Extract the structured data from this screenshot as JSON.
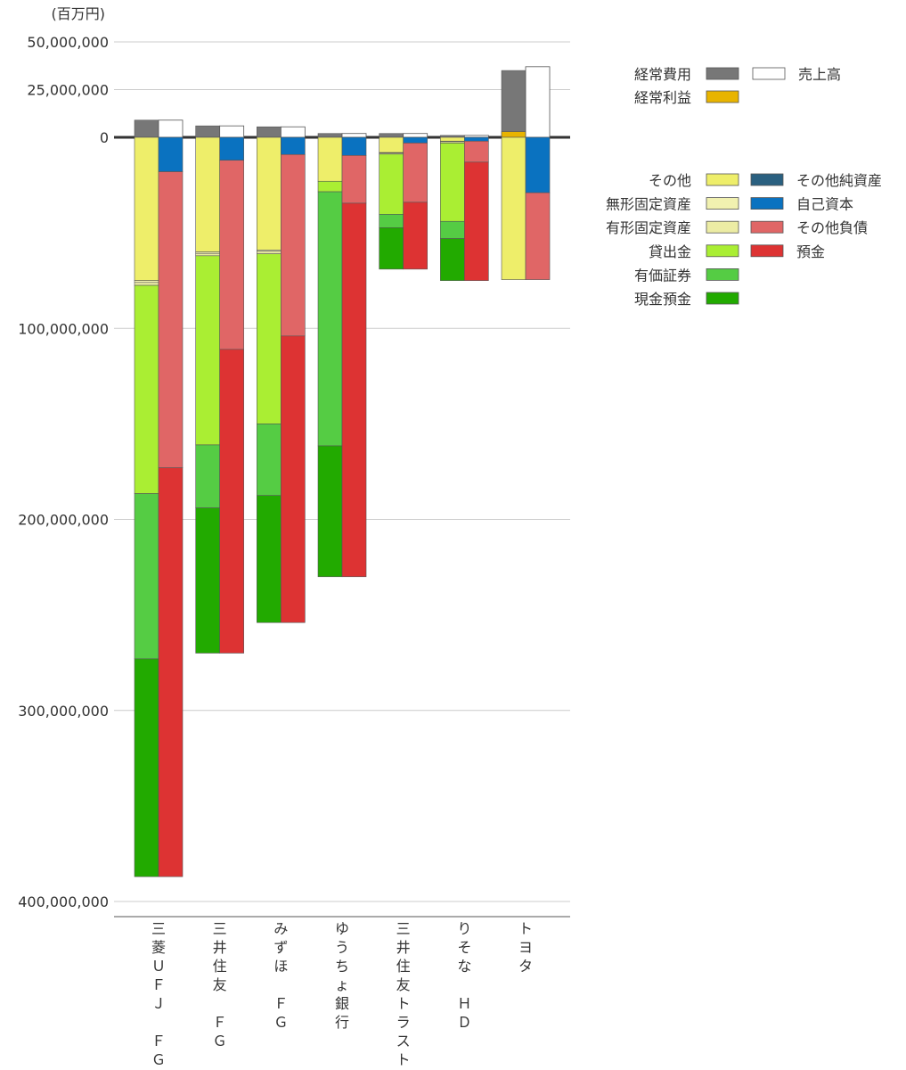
{
  "chart_data": {
    "type": "bar",
    "subtype": "stacked-balance-sheet",
    "unit": "(百万円)",
    "ylim": [
      -400000000,
      50000000
    ],
    "yticks": [
      {
        "value": 50000000,
        "label": "50,000,000"
      },
      {
        "value": 25000000,
        "label": "25,000,000"
      },
      {
        "value": 0,
        "label": "0"
      },
      {
        "value": -100000000,
        "label": "100,000,000"
      },
      {
        "value": -200000000,
        "label": "200,000,000"
      },
      {
        "value": -300000000,
        "label": "300,000,000"
      },
      {
        "value": -400000000,
        "label": "400,000,000"
      }
    ],
    "grid": true,
    "colors": {
      "keijo_hiyo": "#777777",
      "uriage": "#ffffff",
      "keijo_rieki": "#e8b400",
      "sonota": "#eeee6a",
      "mukei": "#f1f1b0",
      "yukei": "#ececa4",
      "kashidashi": "#aaee33",
      "yuka": "#55cc44",
      "genkin": "#22aa00",
      "sonota_jun": "#2a6080",
      "jiko": "#0a72c0",
      "sonota_fusai": "#e06666",
      "yokin": "#dd3333"
    },
    "legend": {
      "pl": [
        {
          "key": "keijo_hiyo",
          "label": "経常費用"
        },
        {
          "key": "keijo_rieki",
          "label": "経常利益"
        },
        {
          "key": "uriage",
          "label": "売上高"
        }
      ],
      "assets": [
        {
          "key": "sonota",
          "label": "その他"
        },
        {
          "key": "mukei",
          "label": "無形固定資産"
        },
        {
          "key": "yukei",
          "label": "有形固定資産"
        },
        {
          "key": "kashidashi",
          "label": "貸出金"
        },
        {
          "key": "yuka",
          "label": "有価証券"
        },
        {
          "key": "genkin",
          "label": "現金預金"
        }
      ],
      "liabilities": [
        {
          "key": "sonota_jun",
          "label": "その他純資産"
        },
        {
          "key": "jiko",
          "label": "自己資本"
        },
        {
          "key": "sonota_fusai",
          "label": "その他負債"
        },
        {
          "key": "yokin",
          "label": "預金"
        }
      ]
    },
    "companies": [
      {
        "name": "三菱ＵＦＪ ＦＧ",
        "label_lines": [
          "三",
          "菱",
          "Ｕ",
          "Ｆ",
          "Ｊ",
          "",
          "Ｆ",
          "Ｇ"
        ],
        "keijo_hiyo": 9000000,
        "keijo_rieki": 0,
        "uriage": 9000000,
        "assets": {
          "sonota": 75000000,
          "mukei": 1000000,
          "yukei": 1500000,
          "kashidashi": 109000000,
          "yuka": 86500000,
          "genkin": 114000000
        },
        "liabilities": {
          "sonota_jun": 0,
          "jiko": 18000000,
          "sonota_fusai": 155000000,
          "yokin": 214000000
        }
      },
      {
        "name": "三井住友 ＦＧ",
        "label_lines": [
          "三",
          "井",
          "住",
          "友",
          "",
          "Ｆ",
          "Ｇ"
        ],
        "keijo_hiyo": 6000000,
        "keijo_rieki": 0,
        "uriage": 6000000,
        "assets": {
          "sonota": 60000000,
          "mukei": 800000,
          "yukei": 1200000,
          "kashidashi": 99000000,
          "yuka": 33000000,
          "genkin": 76000000
        },
        "liabilities": {
          "sonota_jun": 0,
          "jiko": 12000000,
          "sonota_fusai": 99000000,
          "yokin": 159000000
        }
      },
      {
        "name": "みずほ ＦＧ",
        "label_lines": [
          "み",
          "ず",
          "ほ",
          "",
          "Ｆ",
          "Ｇ"
        ],
        "keijo_hiyo": 5500000,
        "keijo_rieki": 0,
        "uriage": 5500000,
        "assets": {
          "sonota": 59000000,
          "mukei": 700000,
          "yukei": 1300000,
          "kashidashi": 89000000,
          "yuka": 37500000,
          "genkin": 66500000
        },
        "liabilities": {
          "sonota_jun": 0,
          "jiko": 9000000,
          "sonota_fusai": 95000000,
          "yokin": 150000000
        }
      },
      {
        "name": "ゆうちょ銀行",
        "label_lines": [
          "ゆ",
          "う",
          "ち",
          "ょ",
          "銀",
          "行"
        ],
        "keijo_hiyo": 2000000,
        "keijo_rieki": 0,
        "uriage": 2000000,
        "assets": {
          "sonota": 23000000,
          "mukei": 0,
          "yukei": 0,
          "kashidashi": 5500000,
          "yuka": 133000000,
          "genkin": 68500000
        },
        "liabilities": {
          "sonota_jun": 0,
          "jiko": 9500000,
          "sonota_fusai": 25000000,
          "yokin": 195500000
        }
      },
      {
        "name": "三井住友トラスト",
        "label_lines": [
          "三",
          "井",
          "住",
          "友",
          "ト",
          "ラ",
          "ス",
          "ト"
        ],
        "keijo_hiyo": 2000000,
        "keijo_rieki": 0,
        "uriage": 2000000,
        "assets": {
          "sonota": 8000000,
          "mukei": 300000,
          "yukei": 500000,
          "kashidashi": 31500000,
          "yuka": 7000000,
          "genkin": 21700000
        },
        "liabilities": {
          "sonota_jun": 0,
          "jiko": 3000000,
          "sonota_fusai": 31000000,
          "yokin": 35000000
        }
      },
      {
        "name": "りそな ＨＤ",
        "label_lines": [
          "り",
          "そ",
          "な",
          "",
          "Ｈ",
          "Ｄ"
        ],
        "keijo_hiyo": 1000000,
        "keijo_rieki": 0,
        "uriage": 1000000,
        "assets": {
          "sonota": 2000000,
          "mukei": 300000,
          "yukei": 700000,
          "kashidashi": 41000000,
          "yuka": 9000000,
          "genkin": 22000000
        },
        "liabilities": {
          "sonota_jun": 0,
          "jiko": 2000000,
          "sonota_fusai": 11000000,
          "yokin": 62000000
        }
      },
      {
        "name": "トヨタ",
        "label_lines": [
          "ト",
          "ヨ",
          "タ"
        ],
        "keijo_hiyo": 35000000,
        "keijo_rieki": 3000000,
        "uriage": 37000000,
        "assets": {
          "sonota": 74500000,
          "mukei": 0,
          "yukei": 0,
          "kashidashi": 0,
          "yuka": 0,
          "genkin": 0
        },
        "liabilities": {
          "sonota_jun": 0,
          "jiko": 29000000,
          "sonota_fusai": 45500000,
          "yokin": 0
        }
      }
    ]
  }
}
